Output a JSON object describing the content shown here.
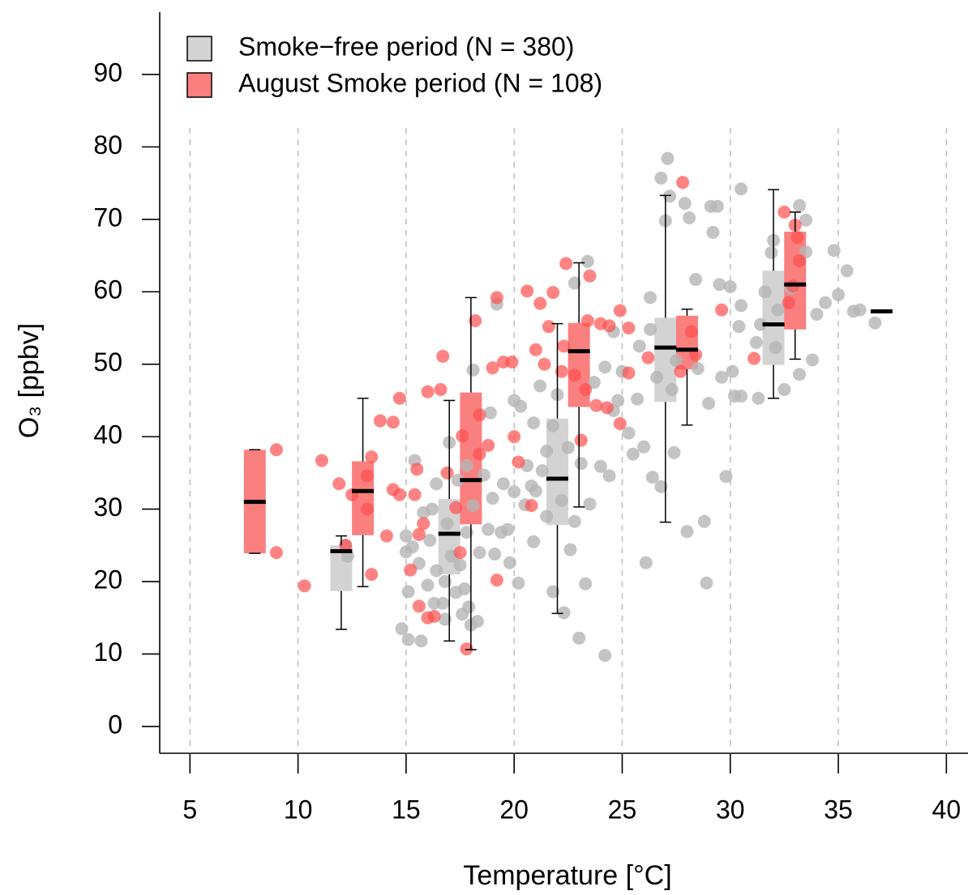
{
  "chart_data": {
    "type": "scatter_box",
    "xlabel": "Temperature [°C]",
    "ylabel": "O₃ [ppbv]",
    "xlim": [
      3.6,
      41.0
    ],
    "ylim": [
      -3.7,
      98.6
    ],
    "xticks": [
      5,
      10,
      15,
      20,
      25,
      30,
      35,
      40
    ],
    "yticks": [
      0,
      10,
      20,
      30,
      40,
      50,
      60,
      70,
      80,
      90
    ],
    "grid": true,
    "legend": "upper left",
    "series": [
      {
        "name": "Smoke−free period (N = 380)",
        "color": "#b5b5b5",
        "box_color": "#d3d3d3",
        "x": [
          14.8,
          15,
          15,
          15.1,
          15.1,
          15.3,
          15.4,
          15.6,
          15.7,
          15.8,
          16,
          16.1,
          16.3,
          16.4,
          16.4,
          16.7,
          16.8,
          16.8,
          16.9,
          17,
          17.1,
          17.3,
          17.4,
          17.5,
          17.6,
          17.7,
          17.8,
          17.9,
          18,
          18.1,
          18.1,
          18.3,
          18.4,
          18.6,
          18.8,
          18.9,
          19,
          19.1,
          19.2,
          19.4,
          19.5,
          19.7,
          19.8,
          20,
          20,
          20.2,
          20.3,
          20.5,
          20.6,
          20.8,
          20.9,
          21,
          21.2,
          21.3,
          21.5,
          21.5,
          21.8,
          21.8,
          22,
          22.2,
          22.3,
          22.5,
          22.6,
          22.8,
          22.8,
          23,
          23.1,
          23.3,
          23.4,
          23.5,
          23.7,
          24,
          24.2,
          24.2,
          24.4,
          24.6,
          24.8,
          25,
          25.3,
          25.5,
          25.7,
          25.8,
          26,
          26.1,
          26.3,
          26.4,
          26.6,
          26.8,
          26.8,
          27,
          27.1,
          27.2,
          27.4,
          27.5,
          27.9,
          28,
          28.1,
          28.4,
          28.8,
          28.9,
          29,
          29.1,
          29.2,
          29.4,
          29.5,
          29.6,
          29.8,
          30,
          30.1,
          30.2,
          30.4,
          30.5,
          30.5,
          30.5,
          31.2,
          31.3,
          31.4,
          31.6,
          31.9,
          32,
          32.1,
          32.2,
          32.5,
          32.8,
          33.2,
          33.2,
          33.5,
          33.5,
          33.8,
          34,
          34.4,
          34.8,
          35,
          35.4,
          35.7,
          36,
          36.7,
          12.3,
          12.2,
          16.2,
          17.8,
          20.9,
          24.6,
          26.3,
          27.3,
          28.5
        ],
        "values": [
          13.5,
          26.3,
          24.1,
          18.6,
          12,
          24.8,
          36.7,
          22.5,
          11.8,
          29.5,
          19.5,
          25.7,
          17,
          21.5,
          33.5,
          17,
          14.8,
          20,
          28,
          39.2,
          23.5,
          18.5,
          34,
          22.3,
          15.5,
          19,
          26.8,
          16.5,
          14,
          49.2,
          30.5,
          14.5,
          24,
          34.7,
          27.2,
          43.3,
          31.5,
          23.8,
          58.3,
          26.8,
          33.5,
          27.2,
          22.6,
          45,
          32.4,
          19.8,
          44.2,
          30.6,
          36,
          33.2,
          25.5,
          32.5,
          47,
          35.3,
          29,
          38,
          18.6,
          41.5,
          45.8,
          31.2,
          15.7,
          38.5,
          24.4,
          61.2,
          28.3,
          12.2,
          36.3,
          19.7,
          64.2,
          30.7,
          47.5,
          35.9,
          9.8,
          49.6,
          34.6,
          54.5,
          45,
          49,
          40.5,
          37.6,
          45.2,
          52.5,
          38.6,
          22.6,
          59.2,
          34.4,
          48.2,
          33.1,
          75.7,
          69.8,
          78.4,
          73.2,
          37.8,
          50.5,
          72.2,
          26.9,
          70.2,
          61.7,
          28.3,
          19.8,
          44.6,
          71.8,
          68.2,
          71.8,
          61,
          48.2,
          34.5,
          60.7,
          49,
          45.6,
          55.2,
          58.1,
          45.6,
          74.2,
          53,
          45.3,
          55.5,
          60,
          65.4,
          67.1,
          52.3,
          57.5,
          46.5,
          60.5,
          71.9,
          48.6,
          69.9,
          65.5,
          50.6,
          56.9,
          58.5,
          65.7,
          59.6,
          62.9,
          57.3,
          57.5,
          55.7,
          23.5,
          25,
          30,
          36,
          41.9,
          43.6,
          54.8,
          46.5,
          49.4
        ],
        "boxes": [
          {
            "x": 12,
            "whislo": 13.4,
            "q1": 18.7,
            "med": 24.2,
            "q3": 25.0,
            "whishi": 26.3
          },
          {
            "x": 17,
            "whislo": 11.8,
            "q1": 21.0,
            "med": 26.6,
            "q3": 31.4,
            "whishi": 45.0
          },
          {
            "x": 22,
            "whislo": 15.6,
            "q1": 27.8,
            "med": 34.2,
            "q3": 42.5,
            "whishi": 55.6
          },
          {
            "x": 27,
            "whislo": 28.2,
            "q1": 44.8,
            "med": 52.3,
            "q3": 56.4,
            "whishi": 73.3
          },
          {
            "x": 32,
            "whislo": 45.3,
            "q1": 49.9,
            "med": 55.5,
            "q3": 62.9,
            "whishi": 74.1
          },
          {
            "x": 37,
            "whislo": 57.3,
            "q1": 57.3,
            "med": 57.3,
            "q3": 57.3,
            "whishi": 57.3
          }
        ]
      },
      {
        "name": "August Smoke period (N = 108)",
        "color": "#ff4f4f",
        "box_color": "#fa8080",
        "x": [
          9,
          9,
          10.3,
          11.1,
          11.9,
          12.2,
          12.5,
          13.2,
          13.2,
          13.4,
          13.4,
          13.8,
          14.1,
          14.4,
          14.4,
          14.7,
          14.7,
          15.2,
          15.4,
          15.5,
          15.6,
          15.6,
          15.8,
          16,
          16,
          16.3,
          16.6,
          16.7,
          16.9,
          17.3,
          17.6,
          17.5,
          17.8,
          18.2,
          18.4,
          18.4,
          18.8,
          19,
          19.2,
          19.2,
          19.5,
          19.9,
          20,
          20.2,
          20.6,
          20.8,
          21,
          21.2,
          21.4,
          21.6,
          21.8,
          22.2,
          22.3,
          22.4,
          22.8,
          23.1,
          23.3,
          23.4,
          23.5,
          23.8,
          24,
          24.3,
          24.4,
          24.9,
          24.9,
          25.3,
          25.3,
          26.2,
          27.8,
          27.7,
          28.2,
          28.4,
          29.6,
          31.1,
          32.5,
          33,
          33.1,
          33.2,
          32.9,
          32.7
        ],
        "values": [
          38.2,
          24,
          19.4,
          36.7,
          33.5,
          25,
          32,
          30,
          34.6,
          37.2,
          21,
          42.2,
          26.3,
          32.7,
          42,
          45.3,
          32,
          21.6,
          32,
          35.5,
          26.5,
          16.6,
          28,
          46.2,
          15,
          15.2,
          46.5,
          51.1,
          35,
          30.2,
          40.1,
          24,
          10.7,
          56,
          43,
          37.6,
          38.8,
          49.5,
          59.2,
          20.2,
          50.3,
          50.3,
          40,
          36.5,
          60.1,
          30.5,
          52,
          58.4,
          50,
          55.2,
          59.9,
          49,
          52.5,
          63.9,
          48.5,
          39.5,
          46.5,
          56,
          62.2,
          44.3,
          55.6,
          44,
          55.3,
          57.4,
          41.8,
          55,
          48.8,
          50.9,
          75.1,
          49,
          54.5,
          51.3,
          57.5,
          50.8,
          71,
          69.2,
          67.5,
          64.3,
          60.8,
          58.5
        ],
        "boxes": [
          {
            "x": 8,
            "whislo": 23.9,
            "q1": 23.9,
            "med": 31.0,
            "q3": 38.2,
            "whishi": 38.2
          },
          {
            "x": 13,
            "whislo": 19.3,
            "q1": 26.4,
            "med": 32.5,
            "q3": 36.6,
            "whishi": 45.3
          },
          {
            "x": 18,
            "whislo": 10.6,
            "q1": 27.9,
            "med": 34.0,
            "q3": 46.1,
            "whishi": 59.2
          },
          {
            "x": 23,
            "whislo": 30.3,
            "q1": 44.1,
            "med": 51.8,
            "q3": 55.7,
            "whishi": 64.0
          },
          {
            "x": 28,
            "whislo": 41.6,
            "q1": 49.3,
            "med": 52.0,
            "q3": 56.7,
            "whishi": 57.6
          },
          {
            "x": 33,
            "whislo": 50.7,
            "q1": 54.8,
            "med": 61.0,
            "q3": 68.3,
            "whishi": 71.0
          }
        ]
      }
    ]
  }
}
